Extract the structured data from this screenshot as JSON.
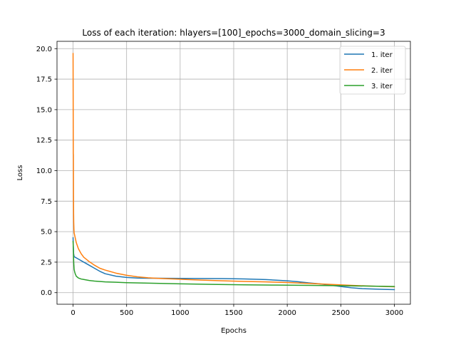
{
  "chart_data": {
    "type": "line",
    "title": "Loss of each iteration: hlayers=[100]_epochs=3000_domain_slicing=3",
    "xlabel": "Epochs",
    "ylabel": "Loss",
    "xlim": [
      -150,
      3150
    ],
    "ylim": [
      -0.95,
      20.6
    ],
    "xticks": [
      0,
      500,
      1000,
      1500,
      2000,
      2500,
      3000
    ],
    "yticks": [
      0.0,
      2.5,
      5.0,
      7.5,
      10.0,
      12.5,
      15.0,
      17.5,
      20.0
    ],
    "xtick_labels": [
      "0",
      "500",
      "1000",
      "1500",
      "2000",
      "2500",
      "3000"
    ],
    "ytick_labels": [
      "0.0",
      "2.5",
      "5.0",
      "7.5",
      "10.0",
      "12.5",
      "15.0",
      "17.5",
      "20.0"
    ],
    "grid": true,
    "legend_position": "top-right",
    "series": [
      {
        "name": "1. iter",
        "color": "#1f77b4",
        "x": [
          0,
          2,
          5,
          10,
          20,
          50,
          100,
          150,
          200,
          250,
          300,
          400,
          500,
          600,
          700,
          800,
          1000,
          1200,
          1400,
          1600,
          1800,
          1900,
          2000,
          2100,
          2200,
          2300,
          2400,
          2500,
          2600,
          2700,
          2800,
          2900,
          3000
        ],
        "y": [
          4.5,
          3.8,
          3.2,
          2.95,
          2.9,
          2.75,
          2.5,
          2.25,
          2.0,
          1.75,
          1.55,
          1.35,
          1.25,
          1.2,
          1.18,
          1.18,
          1.17,
          1.16,
          1.15,
          1.12,
          1.07,
          1.02,
          0.97,
          0.9,
          0.8,
          0.72,
          0.62,
          0.5,
          0.4,
          0.33,
          0.3,
          0.27,
          0.25
        ]
      },
      {
        "name": "2. iter",
        "color": "#ff7f0e",
        "x": [
          0,
          1,
          2,
          3,
          4,
          5,
          6,
          8,
          10,
          15,
          20,
          30,
          50,
          75,
          100,
          150,
          200,
          250,
          300,
          400,
          500,
          600,
          700,
          800,
          1000,
          1200,
          1400,
          1600,
          1800,
          2000,
          2200,
          2400,
          2600,
          2800,
          3000
        ],
        "y": [
          19.6,
          15.5,
          11.4,
          11.3,
          8.0,
          6.5,
          5.8,
          5.2,
          4.9,
          4.7,
          4.5,
          4.1,
          3.6,
          3.2,
          2.9,
          2.55,
          2.25,
          2.0,
          1.85,
          1.6,
          1.42,
          1.3,
          1.22,
          1.17,
          1.1,
          1.03,
          0.97,
          0.92,
          0.88,
          0.83,
          0.76,
          0.68,
          0.6,
          0.53,
          0.48
        ]
      },
      {
        "name": "3. iter",
        "color": "#2ca02c",
        "x": [
          0,
          3,
          6,
          10,
          15,
          20,
          30,
          50,
          75,
          100,
          150,
          200,
          300,
          400,
          500,
          700,
          1000,
          1300,
          1600,
          1900,
          2200,
          2500,
          2800,
          3000
        ],
        "y": [
          4.2,
          3.5,
          2.5,
          1.9,
          1.7,
          1.55,
          1.35,
          1.2,
          1.12,
          1.08,
          1.0,
          0.95,
          0.88,
          0.85,
          0.82,
          0.78,
          0.72,
          0.68,
          0.64,
          0.62,
          0.6,
          0.57,
          0.53,
          0.5
        ]
      }
    ]
  }
}
